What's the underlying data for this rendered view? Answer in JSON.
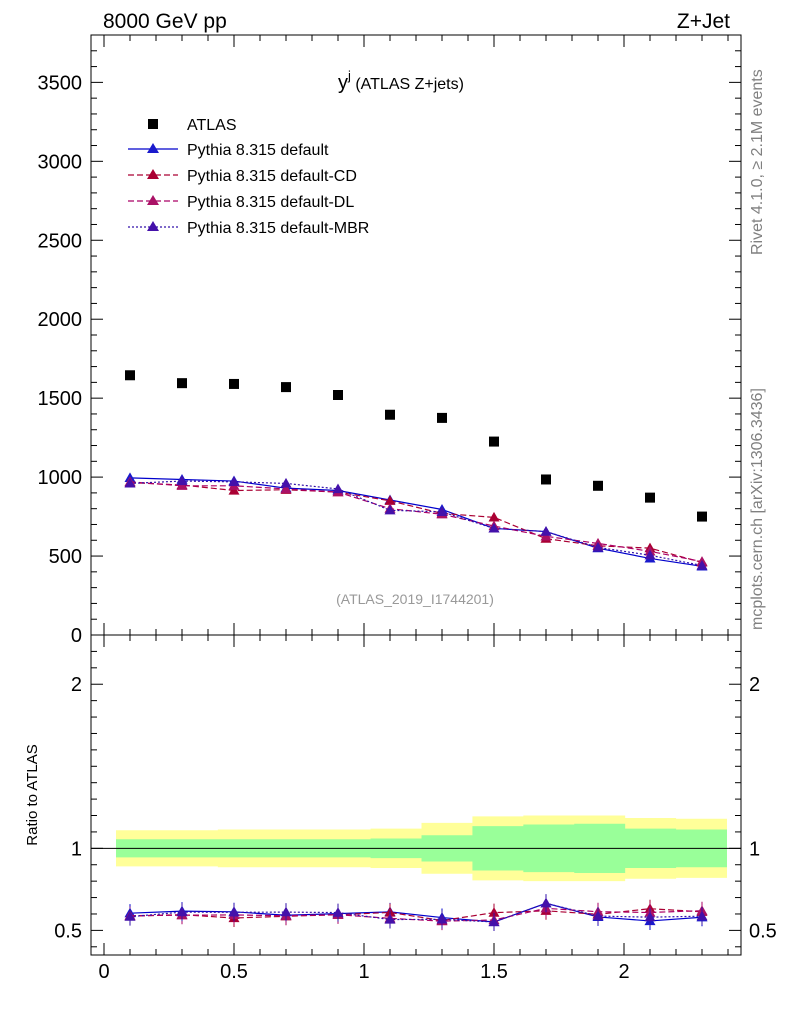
{
  "header": {
    "left": "8000 GeV pp",
    "right": "Z+Jet"
  },
  "side_text": {
    "rivet": "Rivet 4.1.0, ≥ 2.1M events",
    "mcplots": "mcplots.cern.ch [arXiv:1306.3436]"
  },
  "chart_data": {
    "type": "scatter",
    "title_main": "y",
    "title_sup": "j",
    "title_rest": " (ATLAS Z+jets)",
    "watermark": "(ATLAS_2019_I1744201)",
    "ratio_ylabel": "Ratio to ATLAS",
    "xlim": [
      -0.05,
      2.45
    ],
    "ylim_main": [
      0,
      3800
    ],
    "ylim_ratio": [
      0.35,
      2.3
    ],
    "main_yticks": [
      {
        "v": 0,
        "label": "0"
      },
      {
        "v": 500,
        "label": "500"
      },
      {
        "v": 1000,
        "label": "1000"
      },
      {
        "v": 1500,
        "label": "1500"
      },
      {
        "v": 2000,
        "label": "2000"
      },
      {
        "v": 2500,
        "label": "2500"
      },
      {
        "v": 3000,
        "label": "3000"
      },
      {
        "v": 3500,
        "label": "3500"
      }
    ],
    "ratio_yticks": [
      {
        "v": 0.5,
        "label": "0.5"
      },
      {
        "v": 1,
        "label": "1"
      },
      {
        "v": 2,
        "label": "2"
      }
    ],
    "xticks": [
      {
        "v": 0,
        "label": "0"
      },
      {
        "v": 0.5,
        "label": "0.5"
      },
      {
        "v": 1,
        "label": "1"
      },
      {
        "v": 1.5,
        "label": "1.5"
      },
      {
        "v": 2,
        "label": "2"
      }
    ],
    "x": [
      0.1,
      0.3,
      0.5,
      0.7,
      0.9,
      1.1,
      1.3,
      1.5,
      1.7,
      1.9,
      2.1,
      2.3
    ],
    "bin_edges": [
      0.0,
      0.2,
      0.4,
      0.6,
      0.8,
      1.0,
      1.2,
      1.4,
      1.6,
      1.8,
      2.0,
      2.2,
      2.4
    ],
    "data": {
      "name": "ATLAS",
      "values": [
        1645,
        1595,
        1590,
        1570,
        1520,
        1395,
        1375,
        1225,
        985,
        945,
        870,
        750
      ]
    },
    "band_inner": [
      0.055,
      0.055,
      0.055,
      0.055,
      0.055,
      0.06,
      0.08,
      0.135,
      0.145,
      0.15,
      0.12,
      0.115,
      0.125
    ],
    "band_outer": [
      0.11,
      0.11,
      0.115,
      0.115,
      0.115,
      0.12,
      0.155,
      0.195,
      0.2,
      0.2,
      0.185,
      0.18,
      0.185
    ],
    "series": [
      {
        "name": "Pythia 8.315 default",
        "color": "#0000cc",
        "marker_color": "#1a1acc",
        "dash": "",
        "values": [
          995,
          985,
          975,
          930,
          915,
          855,
          795,
          675,
          655,
          550,
          485,
          435
        ]
      },
      {
        "name": "Pythia 8.315 default-CD",
        "color": "#aa0033",
        "marker_color": "#aa0033",
        "dash": "6,3",
        "values": [
          965,
          950,
          915,
          920,
          905,
          850,
          770,
          745,
          610,
          565,
          550,
          460
        ]
      },
      {
        "name": "Pythia 8.315 default-DL",
        "color": "#aa0066",
        "marker_color": "#aa1166",
        "dash": "6,3",
        "values": [
          970,
          945,
          945,
          925,
          905,
          800,
          765,
          690,
          625,
          580,
          530,
          465
        ]
      },
      {
        "name": "Pythia 8.315 default-MBR",
        "color": "#3311aa",
        "marker_color": "#4411aa",
        "dash": "2,2",
        "values": [
          960,
          975,
          970,
          960,
          925,
          790,
          780,
          675,
          655,
          555,
          505,
          440
        ]
      }
    ],
    "colors": {
      "band_inner": "#99ff99",
      "band_outer": "#ffff99",
      "data_marker": "#000000",
      "watermark": "#999999",
      "side_text": "#808080"
    }
  }
}
